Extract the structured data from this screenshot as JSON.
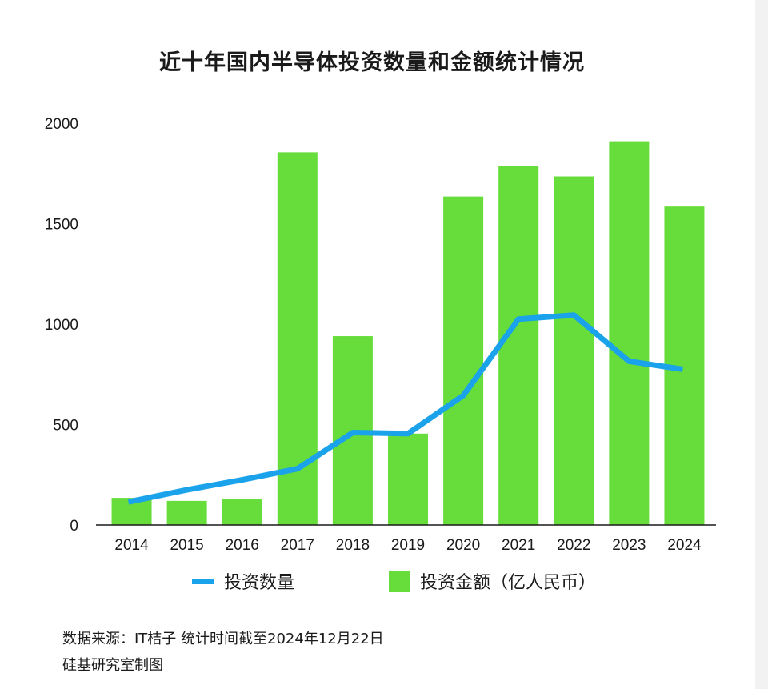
{
  "chart_data": {
    "type": "bar+line",
    "title": "近十年国内半导体投资数量和金额统计情况",
    "categories": [
      "2014",
      "2015",
      "2016",
      "2017",
      "2018",
      "2019",
      "2020",
      "2021",
      "2022",
      "2023",
      "2024"
    ],
    "series": [
      {
        "name": "投资金额（亿人民币）",
        "type": "bar",
        "color": "#66dd3a",
        "values": [
          135,
          120,
          130,
          1855,
          940,
          455,
          1635,
          1785,
          1735,
          1910,
          1585
        ]
      },
      {
        "name": "投资数量",
        "type": "line",
        "color": "#1aa3ea",
        "values": [
          115,
          175,
          225,
          280,
          460,
          455,
          645,
          1025,
          1045,
          815,
          775
        ]
      }
    ],
    "yticks": [
      "0",
      "500",
      "1000",
      "1500",
      "2000"
    ],
    "ylim": [
      0,
      2000
    ],
    "grid": false,
    "legend_position": "bottom"
  },
  "footer": {
    "source": "数据来源：IT桔子  统计时间截至2024年12月22日",
    "credit": "硅基研究室制图"
  }
}
